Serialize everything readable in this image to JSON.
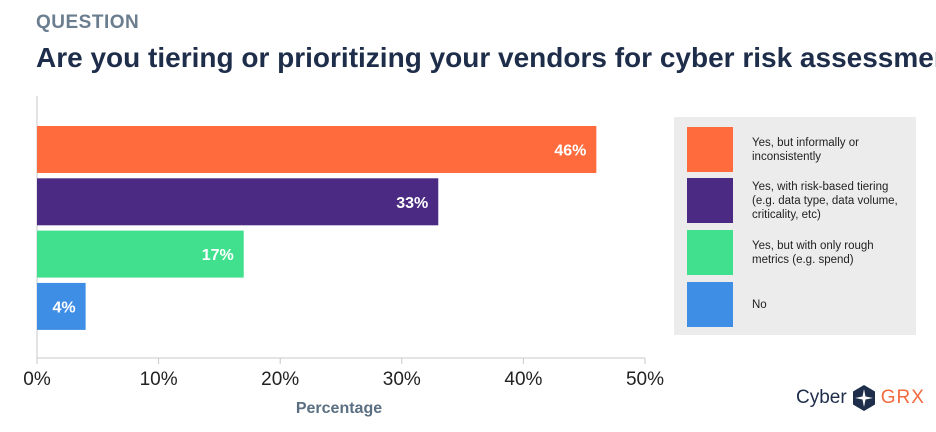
{
  "header": {
    "eyebrow": "QUESTION",
    "title": "Are you tiering or prioritizing your vendors for cyber risk assessment?"
  },
  "chart_data": {
    "type": "bar",
    "orientation": "horizontal",
    "categories": [
      "Yes, but informally or inconsistently",
      "Yes, with risk-based tiering (e.g. data type, data volume, criticality, etc)",
      "Yes, but with only rough metrics (e.g. spend)",
      "No"
    ],
    "values": [
      46,
      33,
      17,
      4
    ],
    "data_labels": [
      "46%",
      "33%",
      "17%",
      "4%"
    ],
    "colors": [
      "#ff6b3d",
      "#4a2a82",
      "#40e08e",
      "#3f8ee6"
    ],
    "xlabel": "Percentage",
    "xlim": [
      0,
      50
    ],
    "xticks": [
      0,
      10,
      20,
      30,
      40,
      50
    ],
    "xtick_labels": [
      "0%",
      "10%",
      "20%",
      "30%",
      "40%",
      "50%"
    ],
    "legend_position": "right",
    "grid": false
  },
  "legend": {
    "items": [
      {
        "label": "Yes, but informally or inconsistently",
        "color": "#ff6b3d"
      },
      {
        "label": "Yes, with risk-based tiering (e.g. data type, data volume, criticality, etc)",
        "color": "#4a2a82"
      },
      {
        "label": "Yes, but with only rough metrics (e.g. spend)",
        "color": "#40e08e"
      },
      {
        "label": "No",
        "color": "#3f8ee6"
      }
    ]
  },
  "brand": {
    "left": "Cyber",
    "right": "GRX",
    "icon": "compass-star-icon",
    "icon_color": "#1e2d4a",
    "accent_color": "#f26a3d"
  }
}
